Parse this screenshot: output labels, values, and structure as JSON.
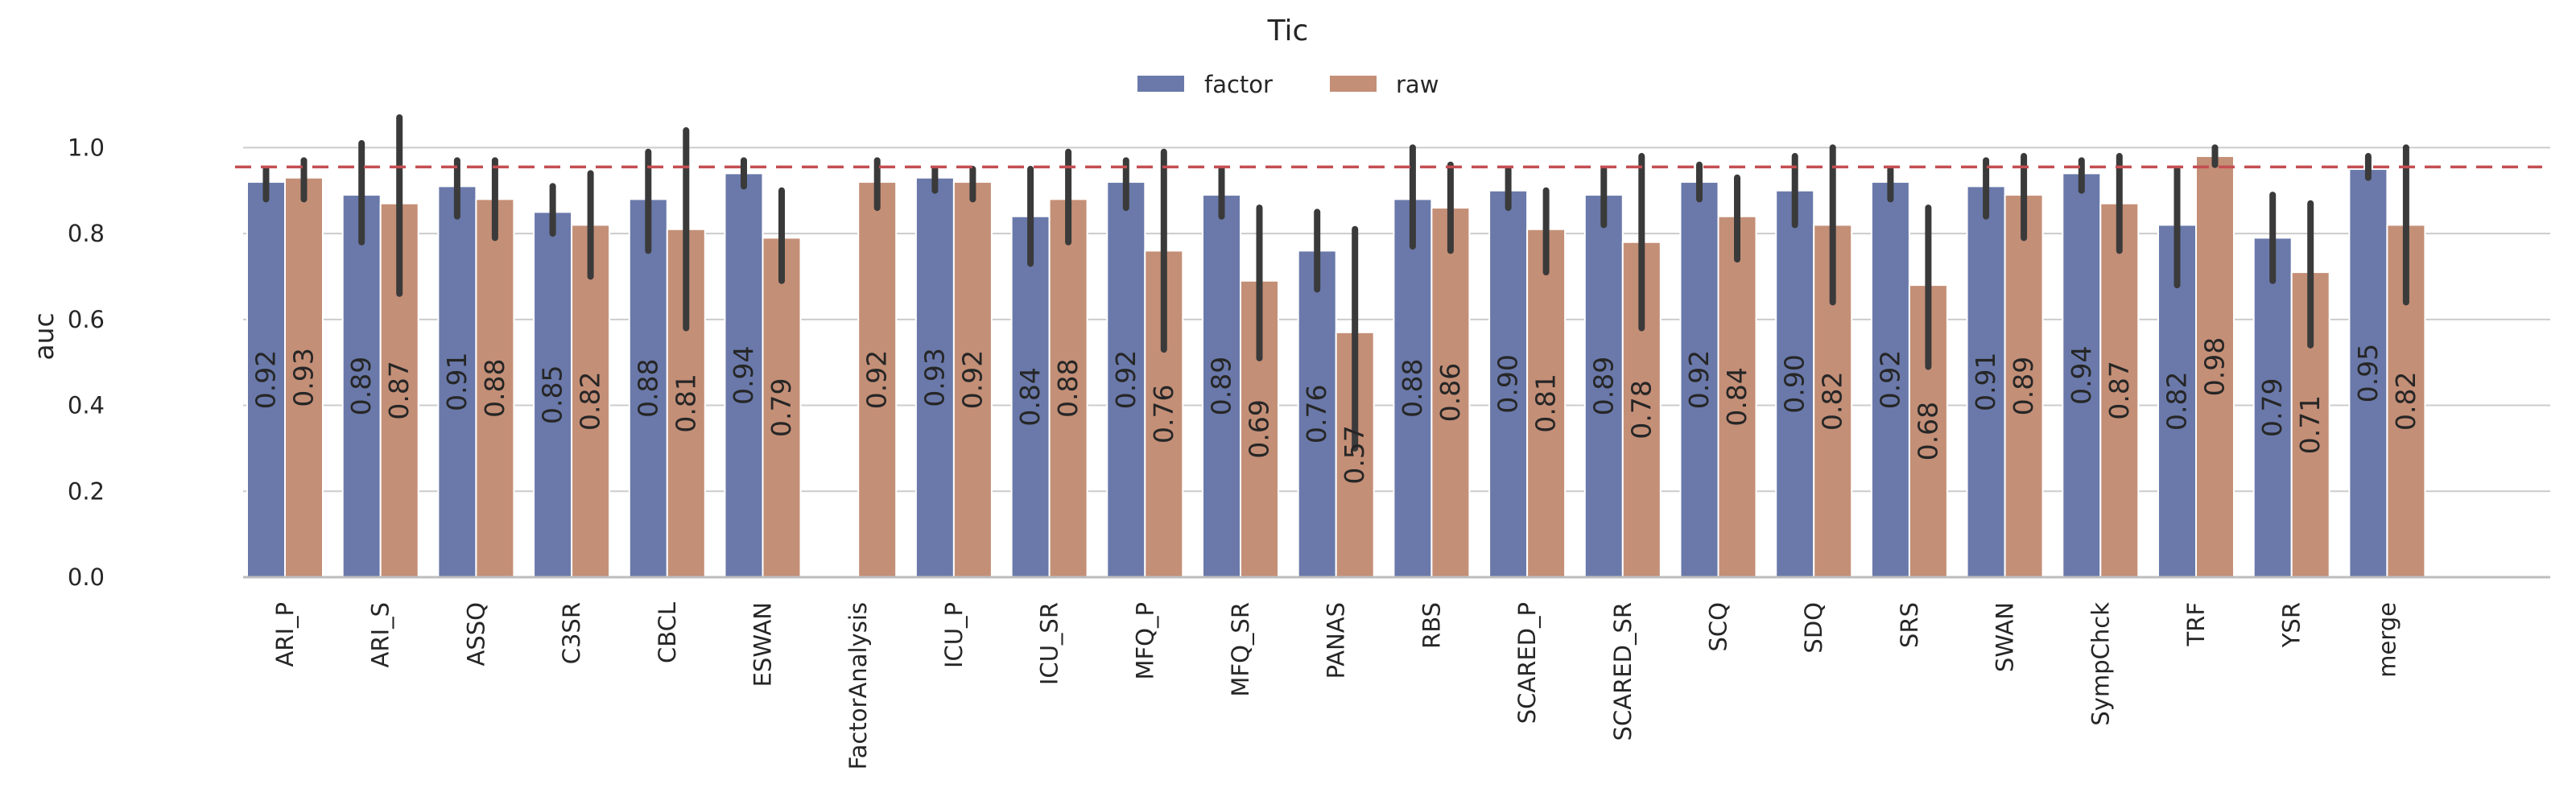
{
  "chart_data": {
    "type": "bar",
    "title": "Tic",
    "ylabel": "auc",
    "xlabel": "",
    "ylim": [
      0,
      1.1
    ],
    "yticks": [
      0.0,
      0.2,
      0.4,
      0.6,
      0.8,
      1.0
    ],
    "ytick_labels": [
      "0.0",
      "0.2",
      "0.4",
      "0.6",
      "0.8",
      "1.0"
    ],
    "grid": true,
    "legend": {
      "placement": "top-center",
      "columns": 2
    },
    "reference_line": {
      "y": 0.955,
      "style": "dashed",
      "color": "#c44e52"
    },
    "categories": [
      "ARI_P",
      "ARI_S",
      "ASSQ",
      "C3SR",
      "CBCL",
      "ESWAN",
      "FactorAnalysis",
      "ICU_P",
      "ICU_SR",
      "MFQ_P",
      "MFQ_SR",
      "PANAS",
      "RBS",
      "SCARED_P",
      "SCARED_SR",
      "SCQ",
      "SDQ",
      "SRS",
      "SWAN",
      "SympChck",
      "TRF",
      "YSR",
      "merge"
    ],
    "series": [
      {
        "name": "factor",
        "color": "#6a79aa",
        "values": [
          0.92,
          0.89,
          0.91,
          0.85,
          0.88,
          0.94,
          null,
          0.93,
          0.84,
          0.92,
          0.89,
          0.76,
          0.88,
          0.9,
          0.89,
          0.92,
          0.9,
          0.92,
          0.91,
          0.94,
          0.82,
          0.79,
          0.95
        ],
        "labels": [
          "0.92",
          "0.89",
          "0.91",
          "0.85",
          "0.88",
          "0.94",
          null,
          "0.93",
          "0.84",
          "0.92",
          "0.89",
          "0.76",
          "0.88",
          "0.90",
          "0.89",
          "0.92",
          "0.90",
          "0.92",
          "0.91",
          "0.94",
          "0.82",
          "0.79",
          "0.95"
        ],
        "ci": [
          [
            0.88,
            0.95
          ],
          [
            0.78,
            1.01
          ],
          [
            0.84,
            0.97
          ],
          [
            0.8,
            0.91
          ],
          [
            0.76,
            0.99
          ],
          [
            0.91,
            0.97
          ],
          null,
          [
            0.9,
            0.95
          ],
          [
            0.73,
            0.95
          ],
          [
            0.86,
            0.97
          ],
          [
            0.84,
            0.95
          ],
          [
            0.67,
            0.85
          ],
          [
            0.77,
            1.0
          ],
          [
            0.86,
            0.95
          ],
          [
            0.82,
            0.95
          ],
          [
            0.88,
            0.96
          ],
          [
            0.82,
            0.98
          ],
          [
            0.88,
            0.95
          ],
          [
            0.84,
            0.97
          ],
          [
            0.9,
            0.97
          ],
          [
            0.68,
            0.95
          ],
          [
            0.69,
            0.89
          ],
          [
            0.93,
            0.98
          ]
        ]
      },
      {
        "name": "raw",
        "color": "#c48f77",
        "values": [
          0.93,
          0.87,
          0.88,
          0.82,
          0.81,
          0.79,
          0.92,
          0.92,
          0.88,
          0.76,
          0.69,
          0.57,
          0.86,
          0.81,
          0.78,
          0.84,
          0.82,
          0.68,
          0.89,
          0.87,
          0.98,
          0.71,
          0.82
        ],
        "labels": [
          "0.93",
          "0.87",
          "0.88",
          "0.82",
          "0.81",
          "0.79",
          "0.92",
          "0.92",
          "0.88",
          "0.76",
          "0.69",
          "0.57",
          "0.86",
          "0.81",
          "0.78",
          "0.84",
          "0.82",
          "0.68",
          "0.89",
          "0.87",
          "0.98",
          "0.71",
          "0.82"
        ],
        "ci": [
          [
            0.88,
            0.97
          ],
          [
            0.66,
            1.07
          ],
          [
            0.79,
            0.97
          ],
          [
            0.7,
            0.94
          ],
          [
            0.58,
            1.04
          ],
          [
            0.69,
            0.9
          ],
          [
            0.86,
            0.97
          ],
          [
            0.88,
            0.95
          ],
          [
            0.78,
            0.99
          ],
          [
            0.53,
            0.99
          ],
          [
            0.51,
            0.86
          ],
          [
            0.3,
            0.81
          ],
          [
            0.76,
            0.96
          ],
          [
            0.71,
            0.9
          ],
          [
            0.58,
            0.98
          ],
          [
            0.74,
            0.93
          ],
          [
            0.64,
            1.0
          ],
          [
            0.49,
            0.86
          ],
          [
            0.79,
            0.98
          ],
          [
            0.76,
            0.98
          ],
          [
            0.96,
            1.0
          ],
          [
            0.54,
            0.87
          ],
          [
            0.64,
            1.0
          ]
        ]
      }
    ]
  }
}
